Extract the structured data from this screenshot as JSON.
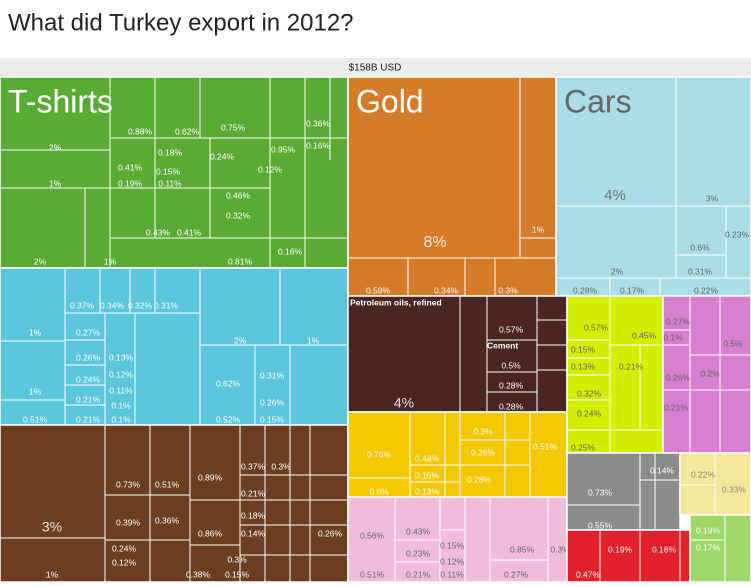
{
  "header": {
    "title": "What did Turkey export in 2012?"
  },
  "treemap": {
    "type": "treemap",
    "total": "$158B USD",
    "groups": [
      {
        "name": "T-shirts",
        "color": "#5aab34",
        "text_color": "#ffffff",
        "tiles": [
          "2%",
          "1%",
          "2%",
          "1%",
          "0.88%",
          "0.62%",
          "0.75%",
          "0.36%",
          "0.41%",
          "0.18%",
          "0.24%",
          "0.95%",
          "0.16%",
          "0.15%",
          "0.12%",
          "0.19%",
          "0.11%",
          "0.46%",
          "0.32%",
          "0.43%",
          "0.41%",
          "0.16%",
          "0.81%"
        ]
      },
      {
        "color": "#5cc6dc",
        "text_color": "#ffffff",
        "tiles": [
          "1%",
          "1%",
          "0.51%",
          "0.37%",
          "0.34%",
          "0.32%",
          "0.31%",
          "0.27%",
          "0.26%",
          "0.24%",
          "0.21%",
          "0.21%",
          "0.13%",
          "0.12%",
          "0.11%",
          "0.1%",
          "0.1%",
          "2%",
          "1%",
          "0.62%",
          "0.31%",
          "0.26%",
          "0.52%",
          "0.15%"
        ]
      },
      {
        "color": "#6b3e22",
        "text_color": "#ffffff",
        "tiles": [
          "3%",
          "1%",
          "0.73%",
          "0.51%",
          "0.89%",
          "0.37%",
          "0.3%",
          "0.21%",
          "0.39%",
          "0.36%",
          "0.86%",
          "0.18%",
          "0.14%",
          "0.26%",
          "0.24%",
          "0.12%",
          "0.38%",
          "0.3%",
          "0.15%"
        ]
      },
      {
        "name": "Gold",
        "color": "#d57c2a",
        "text_color": "#ffffff",
        "tiles": [
          "8%",
          "0.59%",
          "0.34%",
          "0.3%",
          "1%"
        ]
      },
      {
        "name": "Cars",
        "color": "#aadde7",
        "text_color": "#666666",
        "tiles": [
          "4%",
          "3%",
          "0.23%",
          "0.6%",
          "2%",
          "0.31%",
          "0.28%",
          "0.17%",
          "0.22%"
        ]
      },
      {
        "color": "#4a2524",
        "text_color": "#ffffff",
        "tiles": [
          "Petroleum oils, refined",
          "Cement",
          "0.57%",
          "0.5%",
          "0.28%",
          "0.28%",
          "4%"
        ]
      },
      {
        "color": "#f2c800",
        "text_color": "#ffffff",
        "tiles": [
          "0.76%",
          "0.48%",
          "0.15%",
          "0.6%",
          "0.13%",
          "0.3%",
          "0.26%",
          "0.51%",
          "0.28%"
        ]
      },
      {
        "color": "#f0bdd9",
        "text_color": "#666666",
        "tiles": [
          "0.56%",
          "0.43%",
          "0.23%",
          "0.21%",
          "0.15%",
          "0.12%",
          "0.11%",
          "0.85%",
          "0.3%",
          "0.51%",
          "0.27%"
        ]
      },
      {
        "color": "#d3ef00",
        "text_color": "#666666",
        "tiles": [
          "0.57%",
          "0.45%",
          "0.15%",
          "0.13%",
          "0.21%",
          "0.32%",
          "0.24%",
          "0.25%"
        ]
      },
      {
        "color": "#d77fd0",
        "text_color": "#666666",
        "tiles": [
          "0.27%",
          "0.1%",
          "0.5%",
          "0.26%",
          "0.2%",
          "0.21%"
        ]
      },
      {
        "color": "#8c8c8c",
        "text_color": "#ffffff",
        "tiles": [
          "0.73%",
          "0.55%",
          "0.14%"
        ]
      },
      {
        "color": "#e0202a",
        "text_color": "#ffffff",
        "tiles": [
          "0.47%",
          "0.19%",
          "0.18%"
        ]
      },
      {
        "color": "#f5e89a",
        "text_color": "#888888",
        "tiles": [
          "0.22%",
          "0.33%"
        ]
      },
      {
        "color": "#9fd86a",
        "text_color": "#ffffff",
        "tiles": [
          "0.19%",
          "0.17%"
        ]
      }
    ]
  }
}
